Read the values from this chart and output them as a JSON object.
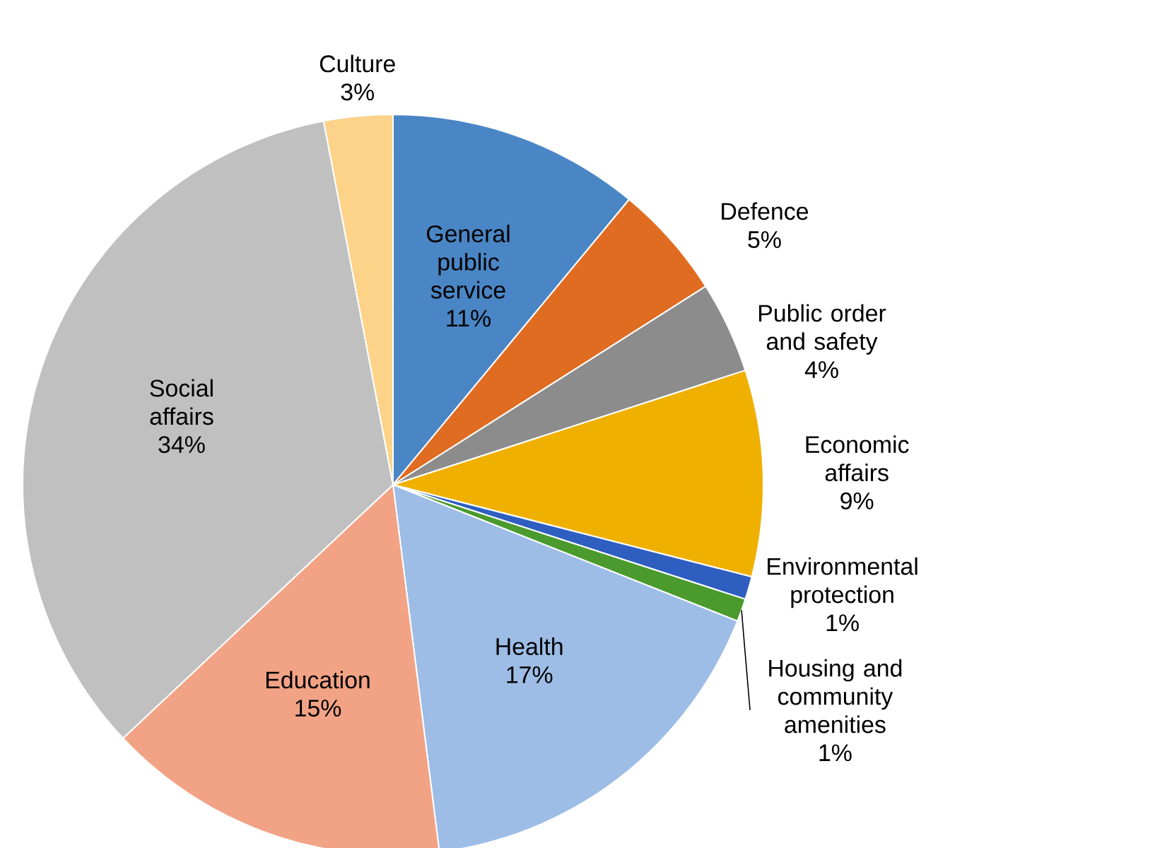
{
  "chart_data": {
    "type": "pie",
    "categories": [
      "General public service",
      "Defence",
      "Public order and safety",
      "Economic affairs",
      "Environmental protection",
      "Housing and community amenities",
      "Health",
      "Education",
      "Social affairs",
      "Culture"
    ],
    "values": [
      11,
      5,
      4,
      9,
      1,
      1,
      17,
      15,
      34,
      3
    ],
    "value_labels": [
      "11%",
      "5%",
      "4%",
      "9%",
      "1%",
      "1%",
      "17%",
      "15%",
      "34%",
      "3%"
    ],
    "colors": [
      "#4a86c5",
      "#e06c22",
      "#8c8c8c",
      "#f0b000",
      "#2e5fc0",
      "#4a9a2e",
      "#9dbde6",
      "#f2a385",
      "#c0c0c0",
      "#fdd38a"
    ]
  }
}
